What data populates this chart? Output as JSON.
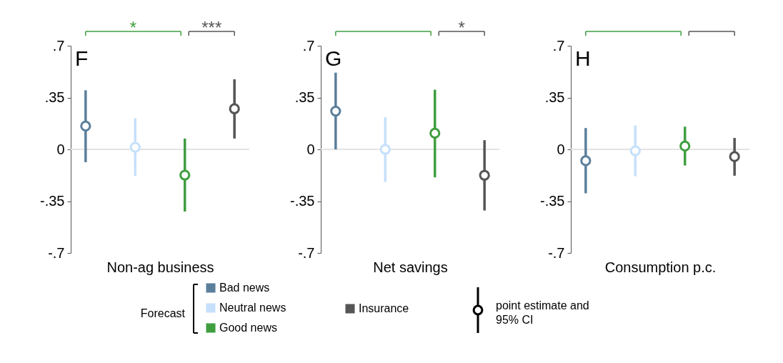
{
  "chart_data": [
    {
      "type": "scatter",
      "title": "F",
      "xlabel": "Non-ag business",
      "categories": [
        null,
        null,
        null,
        null
      ],
      "series": [
        {
          "name": "Bad news",
          "color": "#5b7f9b",
          "values": [
            0.157,
            null,
            null,
            null
          ],
          "errors": [
            [
              -0.087,
              0.399
            ],
            null,
            null,
            null
          ]
        },
        {
          "name": "Neutral news",
          "color": "#c6e0fb",
          "values": [
            null,
            0.014,
            null,
            null
          ],
          "errors": [
            null,
            [
              -0.179,
              0.21
            ],
            null,
            null
          ]
        },
        {
          "name": "Good news",
          "color": "#3f9e3f",
          "values": [
            null,
            null,
            -0.174,
            null
          ],
          "errors": [
            null,
            null,
            [
              -0.42,
              0.073
            ],
            null
          ]
        },
        {
          "name": "Insurance",
          "color": "#555555",
          "values": [
            null,
            null,
            null,
            0.274
          ],
          "errors": [
            null,
            null,
            null,
            [
              0.073,
              0.473
            ]
          ]
        }
      ],
      "ylim": [
        -0.7,
        0.7
      ],
      "yticks": [
        {
          "value": 0.7,
          "label": ".7"
        },
        {
          "value": 0.35,
          "label": ".35"
        },
        0,
        {
          "value": -0.35,
          "label": "-.35"
        },
        {
          "value": -0.7,
          "label": "-.7"
        }
      ],
      "ref_lines": [
        {
          "axis": "y",
          "value": 0,
          "color": "#e3e3e3"
        }
      ],
      "grid": false,
      "marker": "circle",
      "legend": "bottom",
      "legend_title": "Forecast",
      "annotations": [
        "*",
        "***",
        "point estimate and 95% CI"
      ]
    },
    {
      "type": "scatter",
      "title": "G",
      "xlabel": "Net savings",
      "categories": [
        null,
        null,
        null,
        null
      ],
      "series": [
        {
          "color": "#5b7f9b",
          "values": [
            0.258,
            null,
            null,
            null
          ],
          "errors": [
            [
              0.0,
              0.518
            ],
            null,
            null,
            null
          ]
        },
        {
          "color": "#c6e0fb",
          "values": [
            null,
            0.0,
            null,
            null
          ],
          "errors": [
            null,
            [
              -0.22,
              0.217
            ],
            null,
            null
          ]
        },
        {
          "color": "#3f9e3f",
          "values": [
            null,
            null,
            0.109,
            null
          ],
          "errors": [
            null,
            null,
            [
              -0.189,
              0.403
            ],
            null
          ]
        },
        {
          "color": "#555555",
          "values": [
            null,
            null,
            null,
            -0.175
          ],
          "errors": [
            null,
            null,
            null,
            [
              -0.413,
              0.062
            ]
          ]
        }
      ],
      "ylim": [
        -0.7,
        0.7
      ],
      "yticks": [
        {
          "value": 0.7,
          "label": ".7"
        },
        {
          "value": 0.35,
          "label": ".35"
        },
        0,
        {
          "value": -0.35,
          "label": "-.35"
        },
        {
          "value": -0.7,
          "label": "-.7"
        }
      ],
      "ref_lines": [
        {
          "axis": "y",
          "value": 0,
          "color": "#e3e3e3"
        }
      ],
      "grid": false,
      "marker": "circle",
      "annotations": [
        "*"
      ]
    },
    {
      "type": "scatter",
      "title": "H",
      "xlabel": "Consumption p.c.",
      "categories": [
        null,
        null,
        null,
        null
      ],
      "series": [
        {
          "color": "#5b7f9b",
          "values": [
            -0.077,
            null,
            null,
            null
          ],
          "errors": [
            [
              -0.297,
              0.144
            ],
            null,
            null,
            null
          ]
        },
        {
          "color": "#c6e0fb",
          "values": [
            null,
            -0.01,
            null,
            null
          ],
          "errors": [
            null,
            [
              -0.182,
              0.161
            ],
            null,
            null
          ]
        },
        {
          "color": "#3f9e3f",
          "values": [
            null,
            null,
            0.022,
            null
          ],
          "errors": [
            null,
            null,
            [
              -0.109,
              0.153
            ],
            null
          ]
        },
        {
          "color": "#555555",
          "values": [
            null,
            null,
            null,
            -0.049
          ],
          "errors": [
            null,
            null,
            null,
            [
              -0.178,
              0.077
            ]
          ]
        }
      ],
      "ylim": [
        -0.7,
        0.7
      ],
      "yticks": [
        {
          "value": 0.7,
          "label": ".7"
        },
        {
          "value": 0.35,
          "label": ".35"
        },
        0,
        {
          "value": -0.35,
          "label": "-.35"
        },
        {
          "value": -0.7,
          "label": "-.7"
        }
      ],
      "ref_lines": [
        {
          "axis": "y",
          "value": 0,
          "color": "#e3e3e3"
        }
      ],
      "grid": false,
      "marker": "circle"
    }
  ]
}
